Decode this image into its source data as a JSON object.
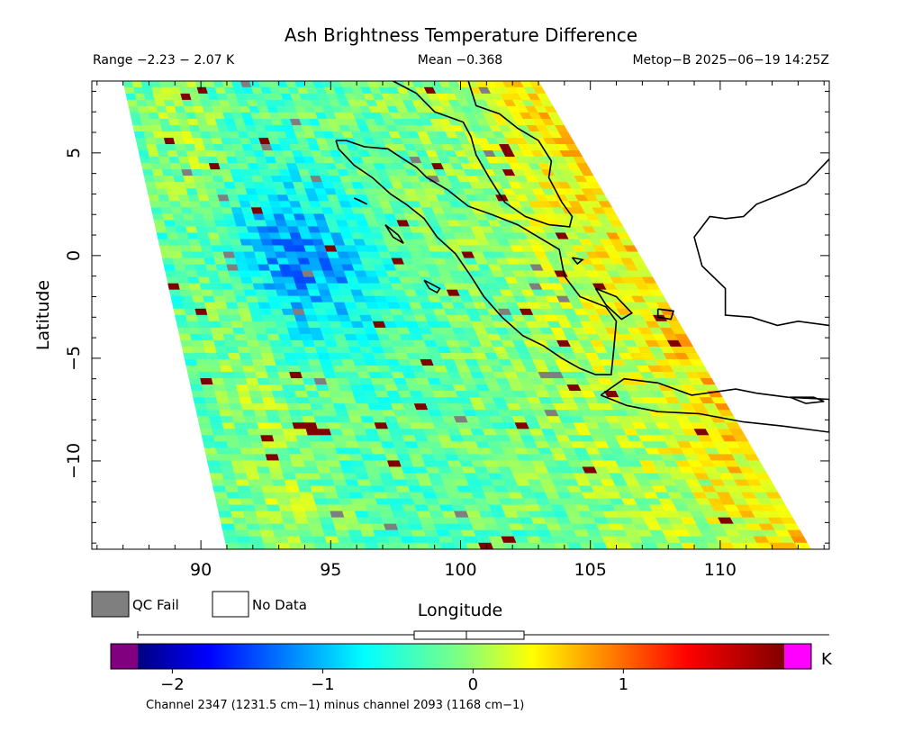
{
  "title": "Ash Brightness Temperature Difference",
  "subtitle_left": "Range −2.23 − 2.07 K",
  "subtitle_center": "Mean −0.368",
  "subtitle_right": "Metop−B 2025−06−19 14:25Z",
  "legend": {
    "qc_fail": "QC Fail",
    "no_data": "No Data"
  },
  "colorbar": {
    "unit": "K",
    "ticks": [
      {
        "value": -2,
        "label": "−2"
      },
      {
        "value": -1,
        "label": "−1"
      },
      {
        "value": 0,
        "label": "0"
      },
      {
        "value": 1,
        "label": "1"
      }
    ],
    "caption": "Channel 2347 (1231.5 cm−1) minus channel 2093 (1168 cm−1)",
    "range": [
      -2.23,
      2.07
    ],
    "mean": -0.368,
    "qc_fail_color": "#7f7f7f",
    "below_color": "#800080",
    "above_color": "#ff00ff"
  },
  "chart_data": {
    "type": "heatmap",
    "title": "Ash Brightness Temperature Difference",
    "xlabel": "Longitude",
    "ylabel": "Latitude",
    "xlim": [
      85.8,
      114.2
    ],
    "ylim": [
      -14.3,
      8.5
    ],
    "x_ticks": [
      {
        "value": 90,
        "label": "90"
      },
      {
        "value": 95,
        "label": "95"
      },
      {
        "value": 100,
        "label": "100"
      },
      {
        "value": 105,
        "label": "105"
      },
      {
        "value": 110,
        "label": "110"
      }
    ],
    "y_ticks": [
      {
        "value": 5,
        "label": "5"
      },
      {
        "value": 0,
        "label": "0"
      },
      {
        "value": -5,
        "label": "−5"
      },
      {
        "value": -10,
        "label": "−10"
      }
    ],
    "color_scale": "jet",
    "value_range": [
      -2.23,
      2.07
    ],
    "mean": -0.368,
    "swath_corners_lonlat": {
      "top_left": [
        87.0,
        8.5
      ],
      "top_right": [
        103.0,
        8.5
      ],
      "bottom_left": [
        91.0,
        -14.3
      ],
      "bottom_right": [
        113.5,
        -14.3
      ]
    },
    "field_description": "Satellite swath of brightness temperature difference; mostly −1 to 0.5 K, more negative (blue) west of Sumatra near 93–97E, 0–2N; more positive (yellow–red) along the eastern swath edge.",
    "coastlines": [
      {
        "name": "sumatra",
        "lonlat": [
          [
            95.2,
            5.6
          ],
          [
            95.6,
            5.6
          ],
          [
            96.3,
            5.3
          ],
          [
            97.2,
            5.2
          ],
          [
            97.8,
            4.7
          ],
          [
            98.3,
            4.3
          ],
          [
            98.7,
            3.8
          ],
          [
            99.5,
            3.2
          ],
          [
            100.3,
            2.4
          ],
          [
            101.2,
            2.0
          ],
          [
            102.2,
            1.5
          ],
          [
            103.0,
            0.9
          ],
          [
            103.8,
            0.3
          ],
          [
            104.0,
            -1.0
          ],
          [
            104.6,
            -2.0
          ],
          [
            105.6,
            -2.5
          ],
          [
            106.0,
            -3.2
          ],
          [
            105.9,
            -4.6
          ],
          [
            105.8,
            -5.8
          ],
          [
            105.2,
            -5.8
          ],
          [
            104.6,
            -5.5
          ],
          [
            103.9,
            -5.0
          ],
          [
            103.2,
            -4.4
          ],
          [
            102.4,
            -3.9
          ],
          [
            101.6,
            -3.0
          ],
          [
            100.9,
            -2.0
          ],
          [
            100.4,
            -1.0
          ],
          [
            99.8,
            0.1
          ],
          [
            99.1,
            0.9
          ],
          [
            98.6,
            1.8
          ],
          [
            97.9,
            2.5
          ],
          [
            97.3,
            3.0
          ],
          [
            96.6,
            3.8
          ],
          [
            95.9,
            4.4
          ],
          [
            95.3,
            5.2
          ],
          [
            95.2,
            5.6
          ]
        ]
      },
      {
        "name": "malay_peninsula",
        "lonlat": [
          [
            97.4,
            8.5
          ],
          [
            98.3,
            7.9
          ],
          [
            99.0,
            7.0
          ],
          [
            100.1,
            6.5
          ],
          [
            100.4,
            5.8
          ],
          [
            100.6,
            4.9
          ],
          [
            101.1,
            3.8
          ],
          [
            101.7,
            2.6
          ],
          [
            102.5,
            1.9
          ],
          [
            103.4,
            1.5
          ],
          [
            104.2,
            1.4
          ],
          [
            104.3,
            1.9
          ],
          [
            103.9,
            2.6
          ],
          [
            103.4,
            3.8
          ],
          [
            103.5,
            4.6
          ],
          [
            103.0,
            5.6
          ],
          [
            102.2,
            6.2
          ],
          [
            101.5,
            6.9
          ],
          [
            100.6,
            7.3
          ],
          [
            100.4,
            8.1
          ],
          [
            100.3,
            8.5
          ]
        ]
      },
      {
        "name": "java",
        "lonlat": [
          [
            105.4,
            -6.8
          ],
          [
            106.3,
            -6.0
          ],
          [
            107.6,
            -6.2
          ],
          [
            108.9,
            -6.8
          ],
          [
            110.6,
            -6.5
          ],
          [
            111.4,
            -6.7
          ],
          [
            112.6,
            -6.9
          ],
          [
            114.2,
            -7.0
          ],
          [
            114.2,
            -8.6
          ],
          [
            112.4,
            -8.3
          ],
          [
            110.9,
            -8.1
          ],
          [
            109.2,
            -7.7
          ],
          [
            107.6,
            -7.6
          ],
          [
            106.4,
            -7.3
          ],
          [
            105.4,
            -6.8
          ]
        ]
      },
      {
        "name": "borneo",
        "lonlat": [
          [
            114.2,
            4.7
          ],
          [
            113.3,
            3.5
          ],
          [
            112.4,
            3.0
          ],
          [
            111.4,
            2.5
          ],
          [
            110.9,
            1.9
          ],
          [
            110.2,
            1.8
          ],
          [
            109.6,
            1.9
          ],
          [
            109.0,
            0.9
          ],
          [
            109.3,
            -0.5
          ],
          [
            110.2,
            -1.6
          ],
          [
            110.2,
            -2.9
          ],
          [
            111.2,
            -3.0
          ],
          [
            112.2,
            -3.4
          ],
          [
            113.0,
            -3.2
          ],
          [
            114.2,
            -3.4
          ]
        ]
      },
      {
        "name": "madura",
        "lonlat": [
          [
            112.7,
            -6.9
          ],
          [
            113.6,
            -6.9
          ],
          [
            114.0,
            -7.1
          ],
          [
            113.3,
            -7.2
          ],
          [
            112.7,
            -6.9
          ]
        ]
      },
      {
        "name": "simeulue",
        "lonlat": [
          [
            95.9,
            2.8
          ],
          [
            96.4,
            2.5
          ],
          [
            96.1,
            2.7
          ],
          [
            95.9,
            2.8
          ]
        ]
      },
      {
        "name": "nias",
        "lonlat": [
          [
            97.1,
            1.5
          ],
          [
            97.6,
            1.0
          ],
          [
            97.8,
            0.6
          ],
          [
            97.4,
            0.9
          ],
          [
            97.1,
            1.5
          ]
        ]
      },
      {
        "name": "siberut",
        "lonlat": [
          [
            98.6,
            -1.2
          ],
          [
            99.2,
            -1.6
          ],
          [
            99.1,
            -1.8
          ],
          [
            98.8,
            -1.6
          ],
          [
            98.6,
            -1.2
          ]
        ]
      },
      {
        "name": "bangka",
        "lonlat": [
          [
            105.2,
            -1.6
          ],
          [
            106.0,
            -2.0
          ],
          [
            106.6,
            -2.8
          ],
          [
            106.2,
            -3.1
          ],
          [
            105.6,
            -2.4
          ],
          [
            105.2,
            -1.6
          ]
        ]
      },
      {
        "name": "belitung",
        "lonlat": [
          [
            107.6,
            -2.6
          ],
          [
            108.2,
            -2.7
          ],
          [
            108.1,
            -3.1
          ],
          [
            107.6,
            -3.0
          ],
          [
            107.6,
            -2.6
          ]
        ]
      },
      {
        "name": "lingga",
        "lonlat": [
          [
            104.3,
            -0.1
          ],
          [
            104.7,
            -0.2
          ],
          [
            104.5,
            -0.4
          ],
          [
            104.3,
            -0.1
          ]
        ]
      }
    ]
  }
}
